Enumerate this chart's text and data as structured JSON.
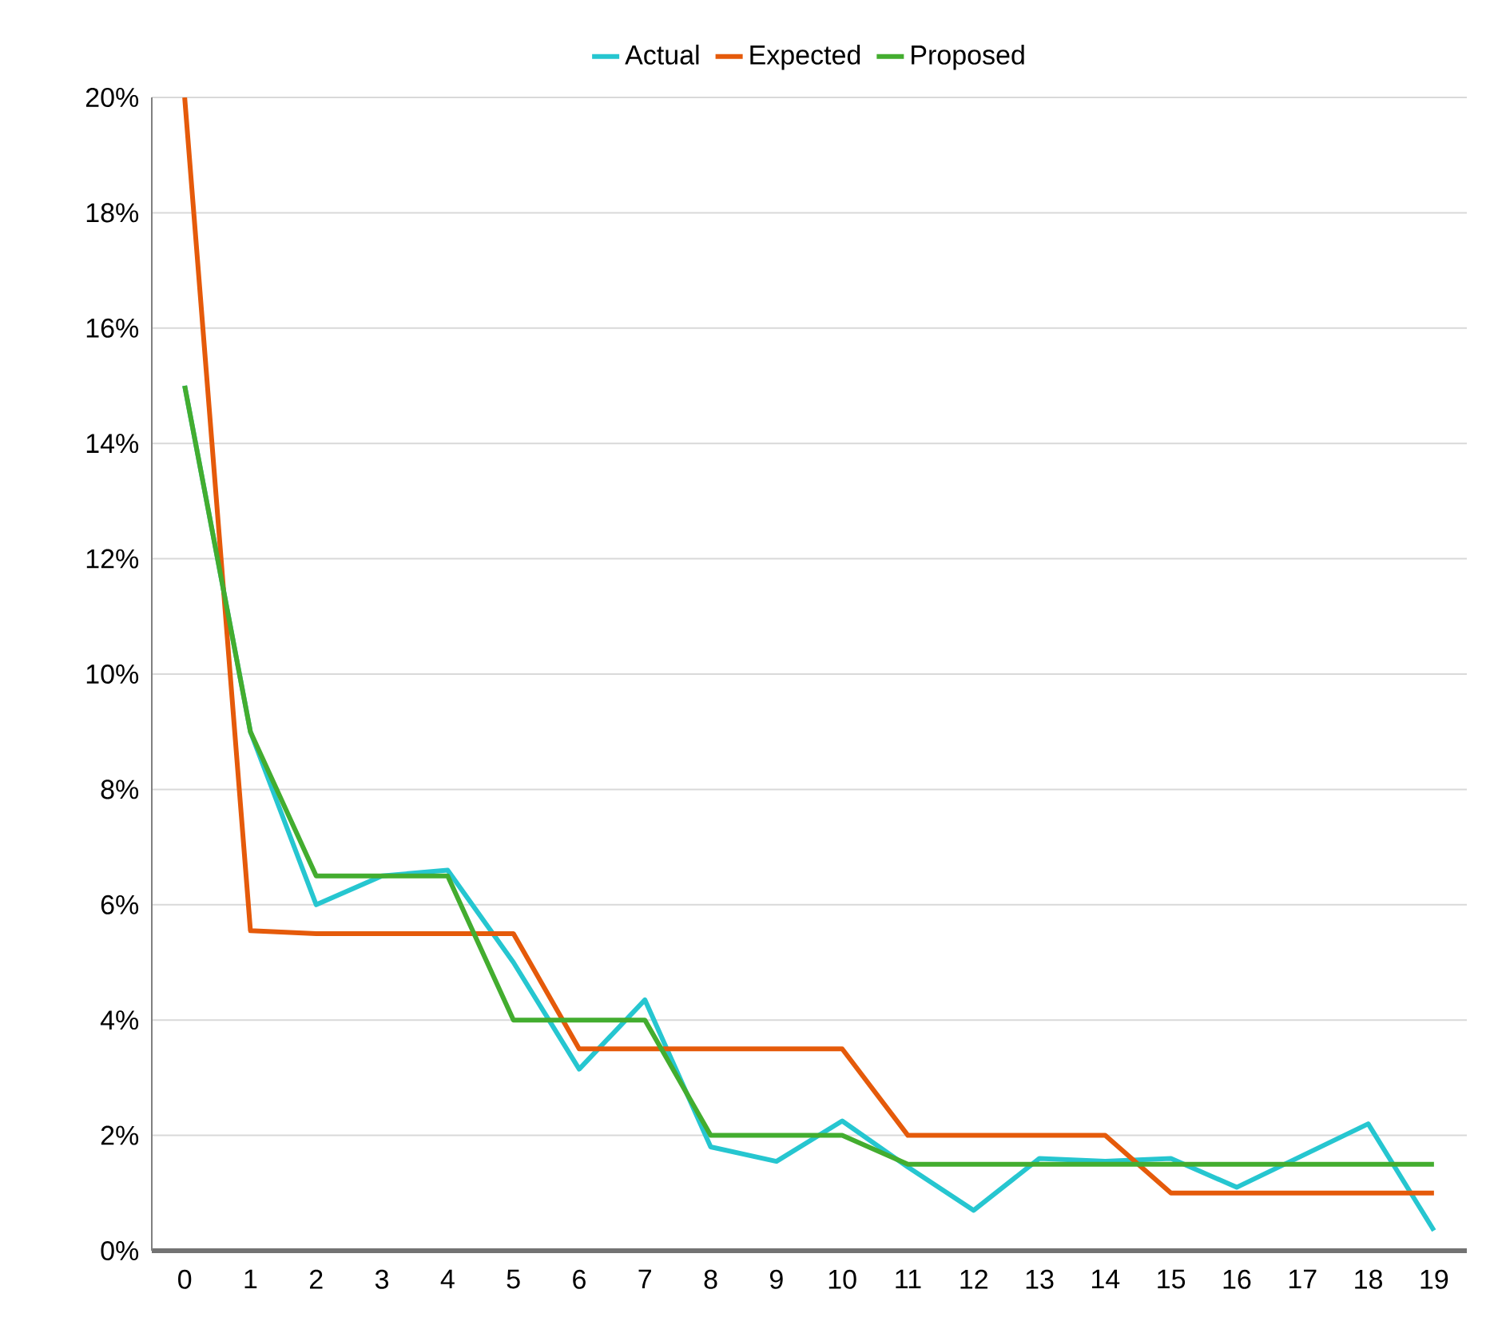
{
  "chart_data": {
    "type": "line",
    "categories": [
      "0",
      "1",
      "2",
      "3",
      "4",
      "5",
      "6",
      "7",
      "8",
      "9",
      "10",
      "11",
      "12",
      "13",
      "14",
      "15",
      "16",
      "17",
      "18",
      "19"
    ],
    "series": [
      {
        "name": "Actual",
        "color": "#26c6d0",
        "values": [
          15,
          9,
          6.0,
          6.5,
          6.6,
          5.0,
          3.15,
          4.35,
          1.8,
          1.55,
          2.25,
          1.45,
          0.7,
          1.6,
          1.55,
          1.6,
          1.1,
          1.65,
          2.2,
          0.35
        ]
      },
      {
        "name": "Expected",
        "color": "#e55a0a",
        "values": [
          20,
          5.55,
          5.5,
          5.5,
          5.5,
          5.5,
          3.5,
          3.5,
          3.5,
          3.5,
          3.5,
          2,
          2,
          2,
          2,
          1,
          1,
          1,
          1,
          1
        ]
      },
      {
        "name": "Proposed",
        "color": "#43ad2f",
        "values": [
          15,
          9,
          6.5,
          6.5,
          6.5,
          4,
          4,
          4,
          2,
          2,
          2,
          1.5,
          1.5,
          1.5,
          1.5,
          1.5,
          1.5,
          1.5,
          1.5,
          1.5
        ]
      }
    ],
    "ylim": [
      0,
      20
    ],
    "yticks": [
      {
        "value": 0,
        "label": "0%"
      },
      {
        "value": 2,
        "label": "2%"
      },
      {
        "value": 4,
        "label": "4%"
      },
      {
        "value": 6,
        "label": "6%"
      },
      {
        "value": 8,
        "label": "8%"
      },
      {
        "value": 10,
        "label": "10%"
      },
      {
        "value": 12,
        "label": "12%"
      },
      {
        "value": 14,
        "label": "14%"
      },
      {
        "value": 16,
        "label": "16%"
      },
      {
        "value": 18,
        "label": "18%"
      },
      {
        "value": 20,
        "label": "20%"
      }
    ],
    "grid": "y",
    "legend": "top",
    "marker": "none",
    "line_style": "solid"
  }
}
